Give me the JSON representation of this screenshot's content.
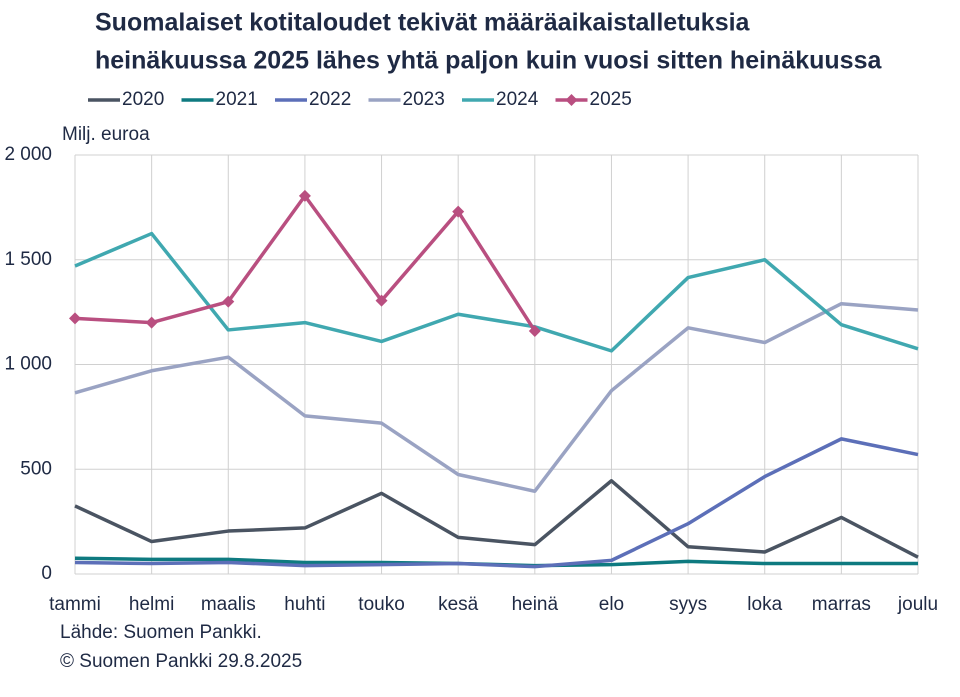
{
  "chart_data": {
    "type": "line",
    "title": [
      "Suomalaiset kotitaloudet tekivät määräaikaistalletuksia",
      "heinäkuussa 2025 lähes yhtä paljon kuin vuosi sitten heinäkuussa"
    ],
    "y_label": "Milj. euroa",
    "categories": [
      "tammi",
      "helmi",
      "maalis",
      "huhti",
      "touko",
      "kesä",
      "heinä",
      "elo",
      "syys",
      "loka",
      "marras",
      "joulu"
    ],
    "series": [
      {
        "name": "2020",
        "color": "#4a5462",
        "values": [
          325,
          155,
          205,
          220,
          385,
          175,
          140,
          445,
          130,
          105,
          270,
          80
        ]
      },
      {
        "name": "2021",
        "color": "#0e7a80",
        "values": [
          75,
          70,
          70,
          55,
          55,
          50,
          40,
          45,
          60,
          50,
          50,
          50
        ]
      },
      {
        "name": "2022",
        "color": "#5c6fb8",
        "values": [
          55,
          50,
          55,
          40,
          45,
          50,
          35,
          65,
          240,
          465,
          645,
          570
        ]
      },
      {
        "name": "2023",
        "color": "#9aa3c3",
        "values": [
          865,
          970,
          1035,
          755,
          720,
          475,
          395,
          875,
          1175,
          1105,
          1290,
          1260
        ]
      },
      {
        "name": "2024",
        "color": "#40a8b0",
        "values": [
          1470,
          1625,
          1165,
          1200,
          1110,
          1240,
          1180,
          1065,
          1415,
          1500,
          1190,
          1075
        ]
      },
      {
        "name": "2025",
        "color": "#b94f80",
        "marker": "diamond",
        "values": [
          1220,
          1200,
          1300,
          1805,
          1305,
          1730,
          1160,
          null,
          null,
          null,
          null,
          null
        ]
      }
    ],
    "ylim": [
      0,
      2000
    ],
    "yticks": [
      0,
      500,
      {
        "value": 1000,
        "label": "1 000"
      },
      {
        "value": 1500,
        "label": "1 500"
      },
      {
        "value": 2000,
        "label": "2 000"
      }
    ],
    "grid": true,
    "legend": "top",
    "source": [
      "Lähde: Suomen Pankki.",
      "© Suomen Pankki 29.8.2025"
    ]
  }
}
